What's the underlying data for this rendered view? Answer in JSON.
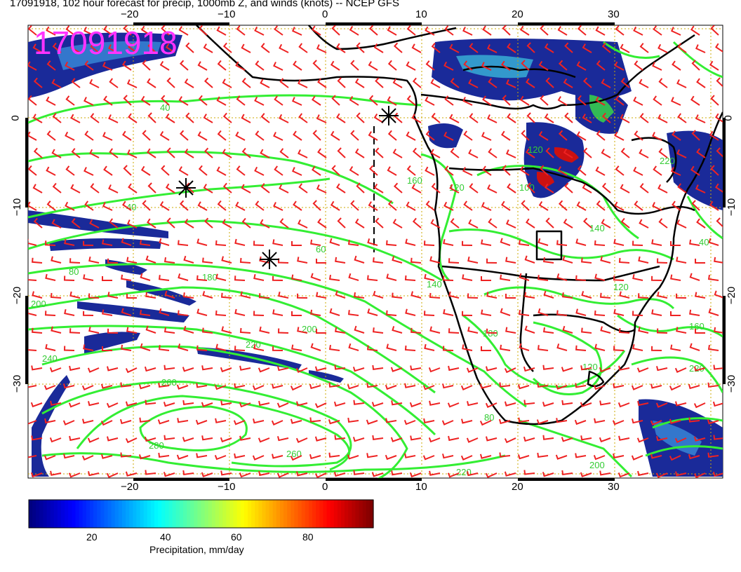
{
  "title": "17091918, 102 hour forecast for precip, 1000mb Z, and winds (knots) -- NCEP GFS",
  "stamp": "17091918",
  "map": {
    "lon_ticks": [
      "−20",
      "−10",
      "0",
      "10",
      "20",
      "30"
    ],
    "lat_ticks": [
      "0",
      "−10",
      "−20",
      "−30"
    ],
    "contour_labels": [
      "40",
      "40",
      "60",
      "80",
      "180",
      "200",
      "220",
      "240",
      "260",
      "280",
      "260",
      "220",
      "140",
      "120",
      "100",
      "160",
      "200",
      "180",
      "220",
      "200",
      "120",
      "120",
      "80",
      "40",
      "220",
      "160",
      "140",
      "120"
    ],
    "colors": {
      "contour": "#33ee33",
      "wind_barb": "#ee2222",
      "coast": "#000000",
      "graticule": "#ccaa00",
      "precip_low": "#1a2a99",
      "precip_mid": "#33aadd",
      "precip_high": "#cc1111"
    }
  },
  "colorbar": {
    "ticks": [
      "20",
      "40",
      "60",
      "80"
    ],
    "label": "Precipitation, mm/day",
    "colors": [
      "#00007f",
      "#0000ff",
      "#007fff",
      "#00ffff",
      "#7fff7f",
      "#ffff00",
      "#ff7f00",
      "#ff0000",
      "#7f0000"
    ]
  }
}
